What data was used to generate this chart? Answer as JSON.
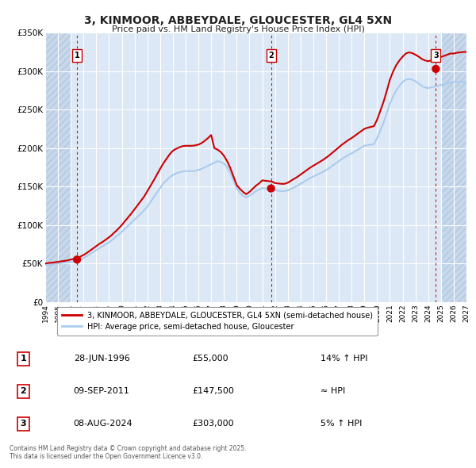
{
  "title": "3, KINMOOR, ABBEYDALE, GLOUCESTER, GL4 5XN",
  "subtitle": "Price paid vs. HM Land Registry's House Price Index (HPI)",
  "background_color": "#ffffff",
  "plot_bg_color": "#dce8f5",
  "hatch_color": "#c8d8ea",
  "grid_color": "#ffffff",
  "xmin": 1994,
  "xmax": 2027,
  "ymin": 0,
  "ymax": 350000,
  "yticks": [
    0,
    50000,
    100000,
    150000,
    200000,
    250000,
    300000,
    350000
  ],
  "ytick_labels": [
    "£0",
    "£50K",
    "£100K",
    "£150K",
    "£200K",
    "£250K",
    "£300K",
    "£350K"
  ],
  "xticks": [
    1994,
    1995,
    1996,
    1997,
    1998,
    1999,
    2000,
    2001,
    2002,
    2003,
    2004,
    2005,
    2006,
    2007,
    2008,
    2009,
    2010,
    2011,
    2012,
    2013,
    2014,
    2015,
    2016,
    2017,
    2018,
    2019,
    2020,
    2021,
    2022,
    2023,
    2024,
    2025,
    2026,
    2027
  ],
  "sale_dates": [
    1996.49,
    2011.69,
    2024.6
  ],
  "sale_prices": [
    55000,
    147500,
    303000
  ],
  "sale_labels": [
    "1",
    "2",
    "3"
  ],
  "vline_color": "#cc0000",
  "dot_color": "#cc0000",
  "dot_size": 55,
  "line_color_red": "#cc0000",
  "line_color_blue": "#aaccee",
  "line_width": 1.5,
  "legend_label_red": "3, KINMOOR, ABBEYDALE, GLOUCESTER, GL4 5XN (semi-detached house)",
  "legend_label_blue": "HPI: Average price, semi-detached house, Gloucester",
  "table_rows": [
    [
      "1",
      "28-JUN-1996",
      "£55,000",
      "14% ↑ HPI"
    ],
    [
      "2",
      "09-SEP-2011",
      "£147,500",
      "≈ HPI"
    ],
    [
      "3",
      "08-AUG-2024",
      "£303,000",
      "5% ↑ HPI"
    ]
  ],
  "footer": "Contains HM Land Registry data © Crown copyright and database right 2025.\nThis data is licensed under the Open Government Licence v3.0.",
  "hpi_data_x": [
    1994.0,
    1994.25,
    1994.5,
    1994.75,
    1995.0,
    1995.25,
    1995.5,
    1995.75,
    1996.0,
    1996.25,
    1996.5,
    1996.75,
    1997.0,
    1997.25,
    1997.5,
    1997.75,
    1998.0,
    1998.25,
    1998.5,
    1998.75,
    1999.0,
    1999.25,
    1999.5,
    1999.75,
    2000.0,
    2000.25,
    2000.5,
    2000.75,
    2001.0,
    2001.25,
    2001.5,
    2001.75,
    2002.0,
    2002.25,
    2002.5,
    2002.75,
    2003.0,
    2003.25,
    2003.5,
    2003.75,
    2004.0,
    2004.25,
    2004.5,
    2004.75,
    2005.0,
    2005.25,
    2005.5,
    2005.75,
    2006.0,
    2006.25,
    2006.5,
    2006.75,
    2007.0,
    2007.25,
    2007.5,
    2007.75,
    2008.0,
    2008.25,
    2008.5,
    2008.75,
    2009.0,
    2009.25,
    2009.5,
    2009.75,
    2010.0,
    2010.25,
    2010.5,
    2010.75,
    2011.0,
    2011.25,
    2011.5,
    2011.75,
    2012.0,
    2012.25,
    2012.5,
    2012.75,
    2013.0,
    2013.25,
    2013.5,
    2013.75,
    2014.0,
    2014.25,
    2014.5,
    2014.75,
    2015.0,
    2015.25,
    2015.5,
    2015.75,
    2016.0,
    2016.25,
    2016.5,
    2016.75,
    2017.0,
    2017.25,
    2017.5,
    2017.75,
    2018.0,
    2018.25,
    2018.5,
    2018.75,
    2019.0,
    2019.25,
    2019.5,
    2019.75,
    2020.0,
    2020.25,
    2020.5,
    2020.75,
    2021.0,
    2021.25,
    2021.5,
    2021.75,
    2022.0,
    2022.25,
    2022.5,
    2022.75,
    2023.0,
    2023.25,
    2023.5,
    2023.75,
    2024.0,
    2024.25,
    2024.5,
    2024.75,
    2025.0,
    2025.25,
    2025.5,
    2025.75,
    2026.0,
    2026.25,
    2026.5,
    2026.75,
    2027.0
  ],
  "hpi_data_y": [
    48000,
    48500,
    49000,
    49500,
    50000,
    50500,
    51000,
    51500,
    52000,
    52800,
    53600,
    55000,
    57000,
    59500,
    62000,
    65000,
    67500,
    70000,
    72500,
    75000,
    77500,
    80500,
    84000,
    87500,
    91000,
    95000,
    99000,
    103000,
    107000,
    111000,
    115000,
    119000,
    124000,
    130000,
    136000,
    142000,
    148000,
    154000,
    158000,
    162000,
    165000,
    167000,
    168500,
    169500,
    170000,
    170000,
    170000,
    170500,
    171500,
    173000,
    175000,
    177000,
    179000,
    181000,
    183000,
    182000,
    180000,
    175000,
    168000,
    158000,
    148000,
    142000,
    138000,
    136000,
    138000,
    141000,
    144000,
    146000,
    148000,
    147500,
    147000,
    146500,
    145000,
    144500,
    144000,
    144000,
    145000,
    147000,
    149000,
    151000,
    153500,
    156000,
    158500,
    161000,
    163000,
    165000,
    167000,
    169000,
    171500,
    174000,
    177000,
    180000,
    183000,
    186000,
    188500,
    191000,
    193000,
    195500,
    198000,
    200500,
    203000,
    204000,
    204500,
    205000,
    213000,
    223000,
    233000,
    245000,
    258000,
    267000,
    275000,
    281000,
    286000,
    289000,
    290000,
    289000,
    287000,
    284000,
    281000,
    279000,
    278000,
    279000,
    280000,
    281000,
    282000,
    283000,
    284000,
    285000,
    286000,
    286000,
    286000,
    286000,
    286000
  ],
  "red_data_x": [
    1994.0,
    1994.25,
    1994.5,
    1994.75,
    1995.0,
    1995.25,
    1995.5,
    1995.75,
    1996.0,
    1996.25,
    1996.5,
    1996.75,
    1997.0,
    1997.25,
    1997.5,
    1997.75,
    1998.0,
    1998.25,
    1998.5,
    1998.75,
    1999.0,
    1999.25,
    1999.5,
    1999.75,
    2000.0,
    2000.25,
    2000.5,
    2000.75,
    2001.0,
    2001.25,
    2001.5,
    2001.75,
    2002.0,
    2002.25,
    2002.5,
    2002.75,
    2003.0,
    2003.25,
    2003.5,
    2003.75,
    2004.0,
    2004.25,
    2004.5,
    2004.75,
    2005.0,
    2005.25,
    2005.5,
    2005.75,
    2006.0,
    2006.25,
    2006.5,
    2006.75,
    2007.0,
    2007.25,
    2007.5,
    2007.75,
    2008.0,
    2008.25,
    2008.5,
    2008.75,
    2009.0,
    2009.25,
    2009.5,
    2009.75,
    2010.0,
    2010.25,
    2010.5,
    2010.75,
    2011.0,
    2011.25,
    2011.5,
    2011.75,
    2012.0,
    2012.25,
    2012.5,
    2012.75,
    2013.0,
    2013.25,
    2013.5,
    2013.75,
    2014.0,
    2014.25,
    2014.5,
    2014.75,
    2015.0,
    2015.25,
    2015.5,
    2015.75,
    2016.0,
    2016.25,
    2016.5,
    2016.75,
    2017.0,
    2017.25,
    2017.5,
    2017.75,
    2018.0,
    2018.25,
    2018.5,
    2018.75,
    2019.0,
    2019.25,
    2019.5,
    2019.75,
    2020.0,
    2020.25,
    2020.5,
    2020.75,
    2021.0,
    2021.25,
    2021.5,
    2021.75,
    2022.0,
    2022.25,
    2022.5,
    2022.75,
    2023.0,
    2023.25,
    2023.5,
    2023.75,
    2024.0,
    2024.25,
    2024.5,
    2024.75,
    2025.0,
    2025.25,
    2025.5,
    2025.75,
    2026.0,
    2026.25,
    2026.5,
    2026.75,
    2027.0
  ],
  "red_data_y": [
    50000,
    50500,
    51000,
    51500,
    52000,
    52800,
    53200,
    54000,
    55000,
    56000,
    57200,
    58800,
    61000,
    63500,
    66500,
    69500,
    72500,
    75500,
    78000,
    81000,
    84000,
    87500,
    91500,
    95500,
    100000,
    105000,
    110000,
    115000,
    120500,
    126000,
    131500,
    137000,
    144000,
    151000,
    158000,
    165500,
    173000,
    180000,
    186000,
    192000,
    196500,
    199000,
    201000,
    202500,
    203000,
    203000,
    203000,
    203500,
    204500,
    206500,
    209500,
    213000,
    217000,
    200000,
    198000,
    195000,
    190000,
    183000,
    174000,
    163000,
    152000,
    147000,
    143000,
    140000,
    143000,
    147000,
    151000,
    154000,
    158000,
    157500,
    157000,
    156500,
    154500,
    154000,
    153500,
    153500,
    155000,
    157500,
    160000,
    162500,
    165500,
    168500,
    171500,
    174500,
    177000,
    179500,
    182000,
    184500,
    187500,
    190500,
    194000,
    197500,
    201000,
    204500,
    207500,
    210500,
    213000,
    216000,
    219000,
    222000,
    225000,
    226500,
    227500,
    228500,
    237000,
    248500,
    260000,
    274000,
    289000,
    299500,
    308000,
    314000,
    319000,
    323000,
    324500,
    323500,
    321500,
    319000,
    316000,
    314000,
    313000,
    314000,
    315500,
    317000,
    318500,
    320000,
    321500,
    323000,
    323000,
    324000,
    324500,
    325000,
    325000
  ]
}
